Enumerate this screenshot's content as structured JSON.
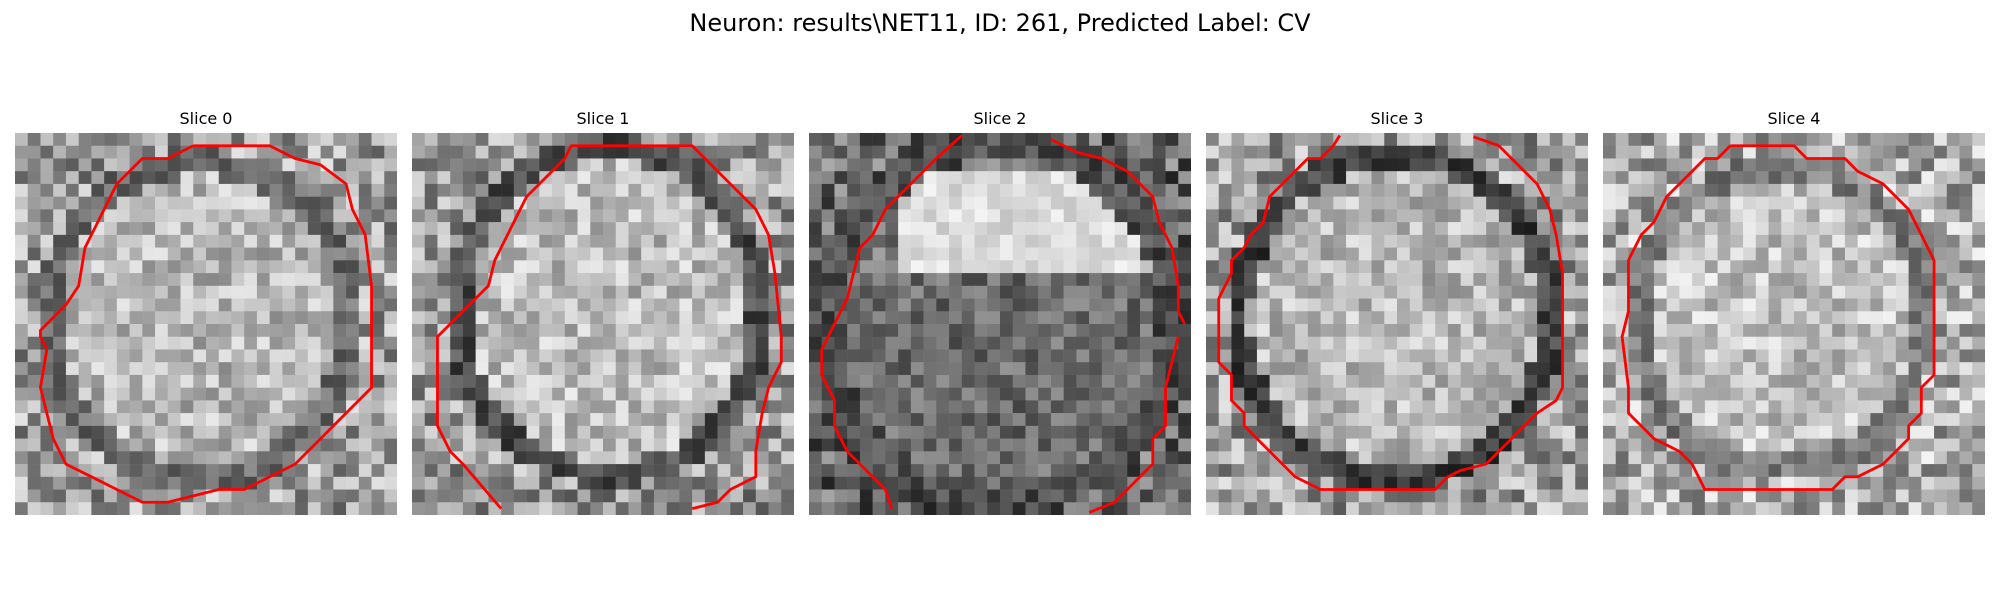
{
  "figure": {
    "title": "Neuron: results\\NET11, ID: 261, Predicted Label: CV"
  },
  "panels": [
    {
      "title": "Slice 0"
    },
    {
      "title": "Slice 1"
    },
    {
      "title": "Slice 2"
    },
    {
      "title": "Slice 3"
    },
    {
      "title": "Slice 4"
    }
  ],
  "colors": {
    "contour": "#ff0000",
    "background": "#ffffff"
  }
}
